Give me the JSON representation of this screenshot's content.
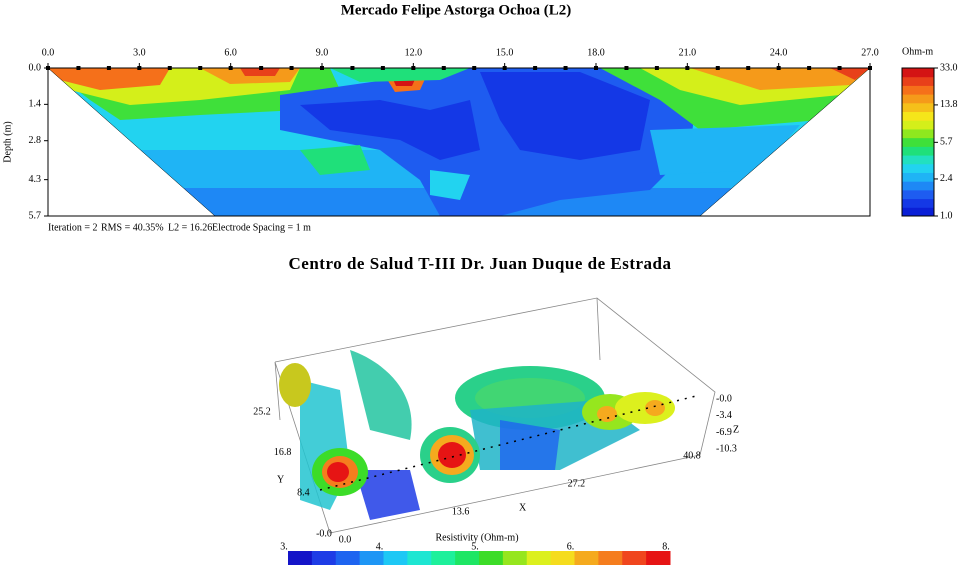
{
  "chart_data": [
    {
      "type": "section",
      "title": "Mercado Felipe Astorga Ochoa (L2)",
      "ylabel": "Depth (m)",
      "xlim": [
        0,
        27
      ],
      "ylim": [
        0,
        5.7
      ],
      "xticks": [
        {
          "value": 0,
          "label": "0.0"
        },
        {
          "value": 3,
          "label": "3.0"
        },
        {
          "value": 6,
          "label": "6.0"
        },
        {
          "value": 9,
          "label": "9.0"
        },
        {
          "value": 12,
          "label": "12.0"
        },
        {
          "value": 15,
          "label": "15.0"
        },
        {
          "value": 18,
          "label": "18.0"
        },
        {
          "value": 21,
          "label": "21.0"
        },
        {
          "value": 24,
          "label": "24.0"
        },
        {
          "value": 27,
          "label": "27.0"
        }
      ],
      "yticks": [
        {
          "value": 0,
          "label": "0.0"
        },
        1.4,
        2.8,
        4.3,
        5.7
      ],
      "colorbar": {
        "label": "Ohm-m",
        "log": true,
        "lim": [
          1,
          33
        ],
        "ticks": [
          {
            "value": 1,
            "label": "1.0"
          },
          2.4,
          5.7,
          13.8,
          {
            "value": 33,
            "label": "33.0"
          }
        ],
        "colors": [
          "#0a1fd6",
          "#1438e6",
          "#1e5cf0",
          "#1e88f5",
          "#1fb4f5",
          "#22d3f0",
          "#22e0c0",
          "#1fe07a",
          "#3fe03a",
          "#8fe81e",
          "#d4ef1a",
          "#f5e61a",
          "#f5c01a",
          "#f59a1a",
          "#f5701a",
          "#e8401a",
          "#d41414"
        ]
      },
      "footer": [
        "Iteration = 2",
        "RMS = 40.35%",
        "L2 = 16.26",
        "Electrode Spacing = 1 m"
      ]
    },
    {
      "type": "volume3d",
      "title": "Centro de Salud T-III Dr. Juan Duque de Estrada",
      "xlabel": "X",
      "ylabel": "Y",
      "zlabel": "Z",
      "xlim": [
        0,
        40.8
      ],
      "ylim": [
        0,
        25.2
      ],
      "zlim": [
        0,
        -10.3
      ],
      "xticks": [
        {
          "value": 0,
          "label": "0.0"
        },
        13.6,
        27.2,
        40.8
      ],
      "yticks": [
        {
          "value": 0,
          "label": "-0.0"
        },
        8.4,
        16.8,
        25.2
      ],
      "zticks": [
        {
          "value": 0,
          "label": "-0.0"
        },
        -3.4,
        -6.9,
        -10.3
      ],
      "colorbar": {
        "label": "Resistivity (Ohm-m)",
        "ticks": [
          {
            "value": 3,
            "label": "3."
          },
          {
            "value": 4,
            "label": "4."
          },
          {
            "value": 5,
            "label": "5."
          },
          {
            "value": 6,
            "label": "6."
          },
          {
            "value": 8,
            "label": "8."
          }
        ],
        "colors": [
          "#1414c8",
          "#1e3ce6",
          "#1e64f0",
          "#1e96f5",
          "#1ec8f5",
          "#1ee6d2",
          "#1ef09b",
          "#1ee664",
          "#3cdc28",
          "#96e61e",
          "#dcf01e",
          "#f5dc1e",
          "#f5aa1e",
          "#f57d1e",
          "#f0461e",
          "#e61414"
        ]
      }
    }
  ]
}
